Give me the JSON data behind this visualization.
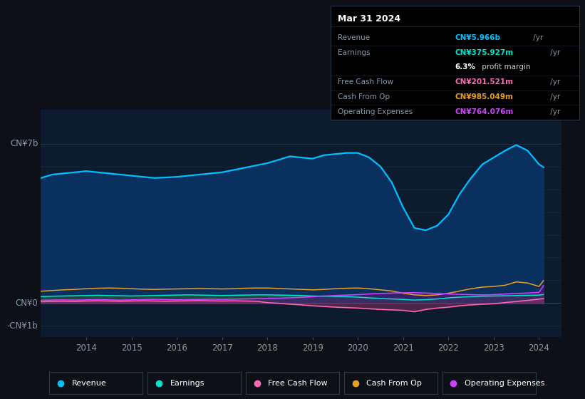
{
  "bg_color": "#0d1117",
  "plot_bg_color": "#0d1b2e",
  "grid_color": "#1e3050",
  "years": [
    2013.0,
    2013.25,
    2013.5,
    2013.75,
    2014.0,
    2014.25,
    2014.5,
    2014.75,
    2015.0,
    2015.25,
    2015.5,
    2015.75,
    2016.0,
    2016.25,
    2016.5,
    2016.75,
    2017.0,
    2017.25,
    2017.5,
    2017.75,
    2018.0,
    2018.25,
    2018.5,
    2018.75,
    2019.0,
    2019.25,
    2019.5,
    2019.75,
    2020.0,
    2020.25,
    2020.5,
    2020.75,
    2021.0,
    2021.25,
    2021.5,
    2021.75,
    2022.0,
    2022.25,
    2022.5,
    2022.75,
    2023.0,
    2023.25,
    2023.5,
    2023.75,
    2024.0,
    2024.1
  ],
  "revenue": [
    5.5,
    5.65,
    5.7,
    5.75,
    5.8,
    5.75,
    5.7,
    5.65,
    5.6,
    5.55,
    5.5,
    5.52,
    5.55,
    5.6,
    5.65,
    5.7,
    5.75,
    5.85,
    5.95,
    6.05,
    6.15,
    6.3,
    6.45,
    6.4,
    6.35,
    6.5,
    6.55,
    6.6,
    6.6,
    6.4,
    6.0,
    5.3,
    4.2,
    3.3,
    3.2,
    3.4,
    3.9,
    4.8,
    5.5,
    6.1,
    6.4,
    6.7,
    6.95,
    6.7,
    6.1,
    5.97
  ],
  "earnings": [
    0.28,
    0.3,
    0.31,
    0.32,
    0.33,
    0.34,
    0.33,
    0.32,
    0.31,
    0.32,
    0.33,
    0.34,
    0.35,
    0.36,
    0.35,
    0.34,
    0.33,
    0.34,
    0.35,
    0.36,
    0.36,
    0.35,
    0.34,
    0.33,
    0.31,
    0.3,
    0.29,
    0.28,
    0.26,
    0.23,
    0.2,
    0.18,
    0.16,
    0.13,
    0.15,
    0.18,
    0.23,
    0.26,
    0.28,
    0.3,
    0.31,
    0.32,
    0.33,
    0.34,
    0.35,
    0.376
  ],
  "free_cash_flow": [
    0.06,
    0.07,
    0.08,
    0.07,
    0.09,
    0.1,
    0.09,
    0.08,
    0.09,
    0.1,
    0.09,
    0.08,
    0.09,
    0.1,
    0.11,
    0.1,
    0.09,
    0.1,
    0.09,
    0.08,
    0.02,
    -0.01,
    -0.05,
    -0.08,
    -0.12,
    -0.15,
    -0.18,
    -0.2,
    -0.22,
    -0.25,
    -0.28,
    -0.3,
    -0.32,
    -0.38,
    -0.28,
    -0.22,
    -0.18,
    -0.12,
    -0.08,
    -0.05,
    -0.03,
    0.02,
    0.07,
    0.12,
    0.17,
    0.201
  ],
  "cash_from_op": [
    0.52,
    0.55,
    0.58,
    0.6,
    0.63,
    0.65,
    0.66,
    0.65,
    0.63,
    0.61,
    0.6,
    0.61,
    0.62,
    0.63,
    0.64,
    0.63,
    0.62,
    0.63,
    0.65,
    0.66,
    0.66,
    0.64,
    0.62,
    0.6,
    0.58,
    0.6,
    0.63,
    0.65,
    0.66,
    0.63,
    0.58,
    0.53,
    0.43,
    0.36,
    0.33,
    0.36,
    0.43,
    0.53,
    0.63,
    0.7,
    0.73,
    0.78,
    0.93,
    0.88,
    0.73,
    0.985
  ],
  "operating_expenses": [
    0.12,
    0.13,
    0.14,
    0.13,
    0.14,
    0.15,
    0.14,
    0.13,
    0.14,
    0.15,
    0.16,
    0.15,
    0.14,
    0.15,
    0.16,
    0.17,
    0.16,
    0.17,
    0.18,
    0.19,
    0.2,
    0.21,
    0.23,
    0.25,
    0.28,
    0.31,
    0.33,
    0.35,
    0.37,
    0.4,
    0.42,
    0.44,
    0.45,
    0.46,
    0.44,
    0.42,
    0.4,
    0.38,
    0.37,
    0.36,
    0.37,
    0.4,
    0.42,
    0.44,
    0.47,
    0.764
  ],
  "revenue_color": "#00bfff",
  "earnings_color": "#00e5cc",
  "free_cash_flow_color": "#ff69b4",
  "cash_from_op_color": "#e8a020",
  "operating_expenses_color": "#cc44ff",
  "revenue_fill": "#0a3060",
  "earnings_fill": "#1a5c4e",
  "op_exp_fill": "#4a1a6e",
  "fcf_fill": "#993366",
  "tick_color": "#8899aa",
  "ylim_top": 8.5,
  "ylim_bottom": -1.5,
  "xlim_left": 2013.0,
  "xlim_right": 2024.5,
  "xtick_years": [
    2014,
    2015,
    2016,
    2017,
    2018,
    2019,
    2020,
    2021,
    2022,
    2023,
    2024
  ],
  "legend_items": [
    {
      "label": "Revenue",
      "color": "#00bfff"
    },
    {
      "label": "Earnings",
      "color": "#00e5cc"
    },
    {
      "label": "Free Cash Flow",
      "color": "#ff69b4"
    },
    {
      "label": "Cash From Op",
      "color": "#e8a020"
    },
    {
      "label": "Operating Expenses",
      "color": "#cc44ff"
    }
  ],
  "tooltip": {
    "title": "Mar 31 2024",
    "rows": [
      {
        "label": "Revenue",
        "value": "CN¥5.966b",
        "suffix": " /yr",
        "color": "#00bfff"
      },
      {
        "label": "Earnings",
        "value": "CN¥375.927m",
        "suffix": " /yr",
        "color": "#00e5cc"
      },
      {
        "label": "",
        "value": "6.3%",
        "suffix": " profit margin",
        "color": "#ffffff",
        "is_margin": true
      },
      {
        "label": "Free Cash Flow",
        "value": "CN¥201.521m",
        "suffix": " /yr",
        "color": "#ff69b4"
      },
      {
        "label": "Cash From Op",
        "value": "CN¥985.049m",
        "suffix": " /yr",
        "color": "#e8a020"
      },
      {
        "label": "Operating Expenses",
        "value": "CN¥764.076m",
        "suffix": " /yr",
        "color": "#cc44ff"
      }
    ]
  }
}
